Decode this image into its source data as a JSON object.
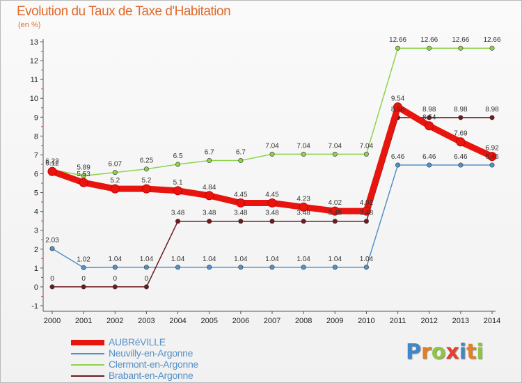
{
  "page": {
    "title": "Evolution du Taux de Taxe d'Habitation",
    "subtitle": "(en %)"
  },
  "logo": {
    "letters": [
      "P",
      "r",
      "o",
      "x",
      "i",
      "t",
      "i"
    ],
    "colors": [
      "#3f87c9",
      "#e67e22",
      "#8dc63f",
      "#e63e2f",
      "#3f87c9",
      "#e67e22",
      "#8dc63f"
    ]
  },
  "chart_data": {
    "type": "line",
    "title": "Evolution du Taux de Taxe d'Habitation",
    "ylabel": "(en %)",
    "xlabel": "",
    "x": [
      2000,
      2001,
      2002,
      2003,
      2004,
      2005,
      2006,
      2007,
      2008,
      2009,
      2010,
      2011,
      2012,
      2013,
      2014
    ],
    "ylim": [
      -1,
      13
    ],
    "yticks": [
      -1,
      0,
      1,
      2,
      3,
      4,
      5,
      6,
      7,
      8,
      9,
      10,
      11,
      12,
      13
    ],
    "grid": false,
    "legend_position": "bottom-left",
    "series": [
      {
        "name": "AUBRéVILLE",
        "color": "#e8140e",
        "values": [
          6.12,
          5.53,
          5.2,
          5.2,
          5.1,
          4.84,
          4.45,
          4.45,
          4.23,
          4.02,
          4.02,
          9.54,
          8.54,
          7.69,
          6.92
        ],
        "labels": [
          "6.12",
          "5.53",
          "5.2",
          "5.2",
          "5.1",
          "4.84",
          "4.45",
          "4.45",
          "4.23",
          "4.02",
          "4.02",
          "9.54",
          "8.54",
          "7.69",
          "6.92"
        ]
      },
      {
        "name": "Neuvilly-en-Argonne",
        "color": "#5591c6",
        "values": [
          2.03,
          1.02,
          1.04,
          1.04,
          1.04,
          1.04,
          1.04,
          1.04,
          1.04,
          1.04,
          1.04,
          6.46,
          6.46,
          6.46,
          6.46
        ],
        "labels": [
          "2.03",
          "1.02",
          "1.04",
          "1.04",
          "1.04",
          "1.04",
          "1.04",
          "1.04",
          "1.04",
          "1.04",
          "1.04",
          "6.46",
          "6.46",
          "6.46",
          "6.46"
        ]
      },
      {
        "name": "Clermont-en-Argonne",
        "color": "#8dd34b",
        "values": [
          6.22,
          5.89,
          6.07,
          6.25,
          6.5,
          6.7,
          6.7,
          7.04,
          7.04,
          7.04,
          7.04,
          12.66,
          12.66,
          12.66,
          12.66
        ],
        "labels": [
          "6.22",
          "5.89",
          "6.07",
          "6.25",
          "6.5",
          "6.7",
          "6.7",
          "7.04",
          "7.04",
          "7.04",
          "7.04",
          "12.66",
          "12.66",
          "12.66",
          "12.66"
        ]
      },
      {
        "name": "Brabant-en-Argonne",
        "color": "#6b1a1d",
        "values": [
          0,
          0,
          0,
          0,
          3.48,
          3.48,
          3.48,
          3.48,
          3.48,
          3.48,
          3.48,
          8.98,
          8.98,
          8.98,
          8.98
        ],
        "labels": [
          "0",
          "0",
          "0",
          "0",
          "3.48",
          "3.48",
          "3.48",
          "3.48",
          "3.48",
          "3.48",
          "3.48",
          "8.98",
          "8.98",
          "8.98",
          "8.98"
        ]
      }
    ]
  }
}
